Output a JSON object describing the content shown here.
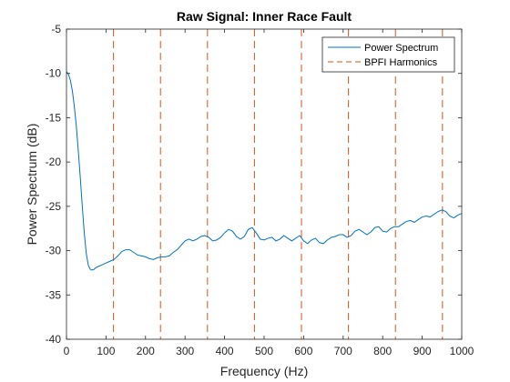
{
  "chart_data": {
    "type": "line",
    "title": "Raw Signal: Inner Race Fault",
    "xlabel": "Frequency (Hz)",
    "ylabel": "Power Spectrum (dB)",
    "xlim": [
      0,
      1000
    ],
    "ylim": [
      -40,
      -5
    ],
    "xticks": [
      0,
      100,
      200,
      300,
      400,
      500,
      600,
      700,
      800,
      900,
      1000
    ],
    "yticks": [
      -40,
      -35,
      -30,
      -25,
      -20,
      -15,
      -10,
      -5
    ],
    "grid": false,
    "legend_position": "top-right",
    "series": [
      {
        "name": "Power Spectrum",
        "color": "#0072BD",
        "x": [
          0,
          5,
          10,
          15,
          20,
          25,
          30,
          35,
          40,
          45,
          50,
          55,
          60,
          65,
          70,
          75,
          80,
          90,
          100,
          110,
          120,
          130,
          140,
          150,
          160,
          170,
          180,
          190,
          200,
          210,
          220,
          230,
          240,
          250,
          260,
          270,
          280,
          290,
          300,
          310,
          320,
          330,
          340,
          350,
          360,
          370,
          380,
          390,
          400,
          410,
          420,
          430,
          440,
          450,
          460,
          470,
          480,
          490,
          500,
          510,
          520,
          530,
          540,
          550,
          560,
          570,
          580,
          590,
          600,
          610,
          620,
          630,
          640,
          650,
          660,
          670,
          680,
          690,
          700,
          710,
          720,
          730,
          740,
          750,
          760,
          770,
          780,
          790,
          800,
          810,
          820,
          830,
          840,
          850,
          860,
          870,
          880,
          890,
          900,
          910,
          920,
          930,
          940,
          950,
          960,
          970,
          980,
          990,
          1000
        ],
        "y": [
          -9.8,
          -10.1,
          -10.8,
          -12.0,
          -13.8,
          -16.0,
          -18.8,
          -21.8,
          -25.0,
          -28.0,
          -30.3,
          -31.6,
          -32.1,
          -32.2,
          -32.1,
          -31.9,
          -31.8,
          -31.6,
          -31.4,
          -31.2,
          -31.0,
          -30.6,
          -30.1,
          -29.9,
          -29.9,
          -30.2,
          -30.5,
          -30.6,
          -30.7,
          -30.9,
          -31.0,
          -30.8,
          -30.7,
          -30.7,
          -30.6,
          -30.2,
          -29.9,
          -29.4,
          -28.9,
          -28.7,
          -28.9,
          -28.7,
          -28.4,
          -28.3,
          -28.5,
          -28.9,
          -28.8,
          -28.5,
          -28.0,
          -27.6,
          -27.8,
          -28.4,
          -28.7,
          -28.4,
          -27.6,
          -27.4,
          -28.0,
          -28.7,
          -28.8,
          -28.6,
          -28.5,
          -28.9,
          -28.7,
          -28.3,
          -28.6,
          -28.9,
          -28.6,
          -28.3,
          -28.9,
          -29.2,
          -28.8,
          -28.6,
          -29.1,
          -29.2,
          -28.8,
          -28.5,
          -28.4,
          -28.2,
          -28.2,
          -28.5,
          -28.3,
          -27.8,
          -27.6,
          -27.9,
          -28.2,
          -27.9,
          -27.4,
          -27.3,
          -27.8,
          -27.9,
          -27.5,
          -27.3,
          -27.3,
          -27.0,
          -26.7,
          -26.6,
          -26.8,
          -26.5,
          -26.2,
          -26.1,
          -26.2,
          -25.9,
          -25.6,
          -25.4,
          -25.6,
          -26.1,
          -26.3,
          -26.0,
          -25.8
        ]
      },
      {
        "name": "BPFI Harmonics",
        "color": "#D95319",
        "style": "dashed",
        "x_positions": [
          118.9,
          237.8,
          356.7,
          475.6,
          594.5,
          713.4,
          832.3,
          951.2
        ]
      }
    ]
  }
}
